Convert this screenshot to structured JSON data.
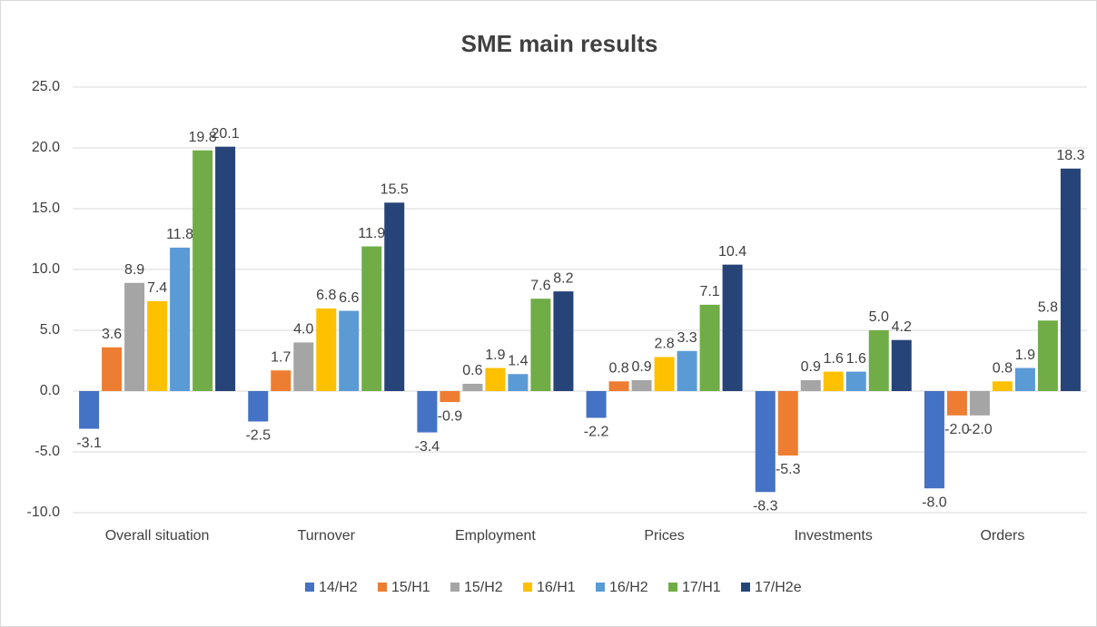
{
  "chart_data": {
    "type": "bar",
    "title": "SME main results",
    "categories": [
      "Overall situation",
      "Turnover",
      "Employment",
      "Prices",
      "Investments",
      "Orders"
    ],
    "series": [
      {
        "name": "14/H2",
        "color": "#4472c4",
        "values": [
          -3.1,
          -2.5,
          -3.4,
          -2.2,
          -8.3,
          -8.0
        ],
        "value_labels": [
          "-3.1",
          "-2.5",
          "-3.4",
          "-2.2",
          "-8.3",
          "-8.0"
        ]
      },
      {
        "name": "15/H1",
        "color": "#ed7d31",
        "values": [
          3.6,
          1.7,
          -0.9,
          0.8,
          -5.3,
          -2.0
        ],
        "value_labels": [
          "3.6",
          "1.7",
          "-0.9",
          "0.8",
          "-5.3",
          "-2.0"
        ]
      },
      {
        "name": "15/H2",
        "color": "#a5a5a5",
        "values": [
          8.9,
          4.0,
          0.6,
          0.9,
          0.9,
          -2.0
        ],
        "value_labels": [
          "8.9",
          "4.0",
          "0.6",
          "0.9",
          "0.9",
          "-2.0"
        ]
      },
      {
        "name": "16/H1",
        "color": "#ffc000",
        "values": [
          7.4,
          6.8,
          1.9,
          2.8,
          1.6,
          0.8
        ],
        "value_labels": [
          "7.4",
          "6.8",
          "1.9",
          "2.8",
          "1.6",
          "0.8"
        ]
      },
      {
        "name": "16/H2",
        "color": "#5b9bd5",
        "values": [
          11.8,
          6.6,
          1.4,
          3.3,
          1.6,
          1.9
        ],
        "value_labels": [
          "11.8",
          "6.6",
          "1.4",
          "3.3",
          "1.6",
          "1.9"
        ]
      },
      {
        "name": "17/H1",
        "color": "#70ad47",
        "values": [
          19.8,
          11.9,
          7.6,
          7.1,
          5.0,
          5.8
        ],
        "value_labels": [
          "19.8",
          "11.9",
          "7.6",
          "7.1",
          "5.0",
          "5.8"
        ]
      },
      {
        "name": "17/H2e",
        "color": "#264478",
        "values": [
          20.1,
          15.5,
          8.2,
          10.4,
          4.2,
          18.3
        ],
        "value_labels": [
          "20.1",
          "15.5",
          "8.2",
          "10.4",
          "4.2",
          "18.3"
        ]
      }
    ],
    "ylim": [
      -10,
      25
    ],
    "yticks": [
      {
        "value": -10,
        "label": "-10.0"
      },
      {
        "value": -5,
        "label": "-5.0"
      },
      {
        "value": 0,
        "label": "0.0"
      },
      {
        "value": 5,
        "label": "5.0"
      },
      {
        "value": 10,
        "label": "10.0"
      },
      {
        "value": 15,
        "label": "15.0"
      },
      {
        "value": 20,
        "label": "20.0"
      },
      {
        "value": 25,
        "label": "25.0"
      }
    ],
    "grid": true,
    "legend": "bottom"
  }
}
